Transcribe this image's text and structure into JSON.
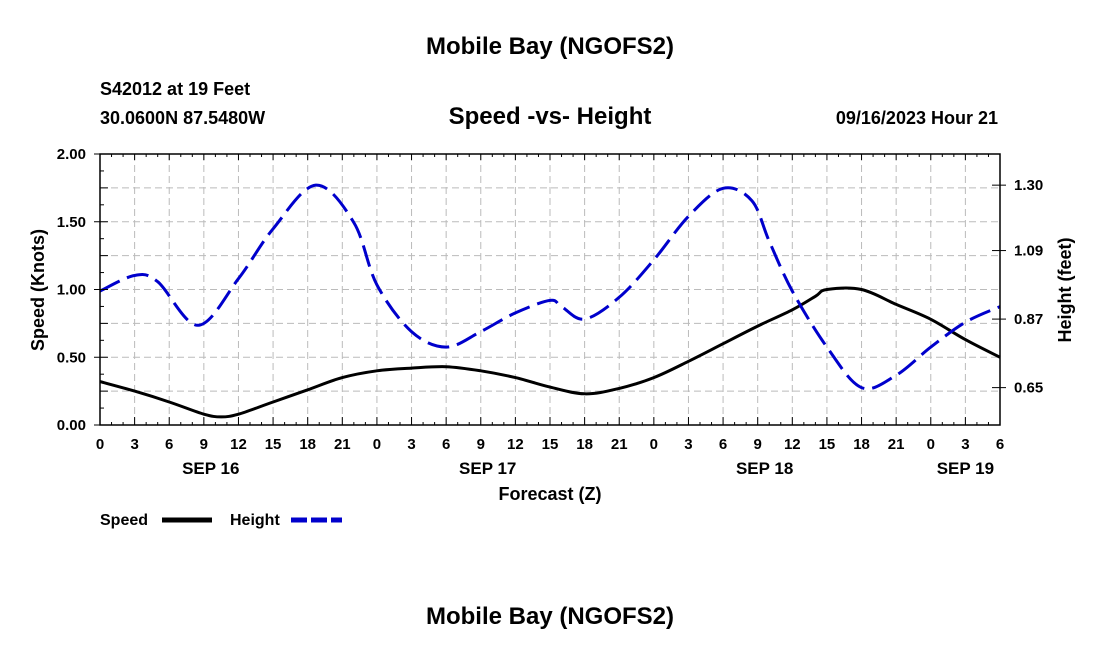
{
  "chart_data": {
    "type": "line",
    "title": "Mobile Bay (NGOFS2)",
    "subtitle": "Speed -vs- Height",
    "station_line1": "S42012 at 19 Feet",
    "station_line2": "30.0600N  87.5480W",
    "timestamp": "09/16/2023 Hour 21",
    "xlabel": "Forecast (Z)",
    "ylabel_left": "Speed (Knots)",
    "ylabel_right": "Height (feet)",
    "x_range_hours": [
      0,
      78
    ],
    "x_ticks_hours": [
      0,
      3,
      6,
      9,
      12,
      15,
      18,
      21,
      24,
      27,
      30,
      33,
      36,
      39,
      42,
      45,
      48,
      51,
      54,
      57,
      60,
      63,
      66,
      69,
      72,
      75,
      78
    ],
    "x_tick_labels": [
      "0",
      "3",
      "6",
      "9",
      "12",
      "15",
      "18",
      "21",
      "0",
      "3",
      "6",
      "9",
      "12",
      "15",
      "18",
      "21",
      "0",
      "3",
      "6",
      "9",
      "12",
      "15",
      "18",
      "21",
      "0",
      "3",
      "6"
    ],
    "date_labels": [
      {
        "hour": 9.6,
        "label": "SEP 16"
      },
      {
        "hour": 33.6,
        "label": "SEP 17"
      },
      {
        "hour": 57.6,
        "label": "SEP 18"
      },
      {
        "hour": 75.0,
        "label": "SEP 19"
      }
    ],
    "y_left_range": [
      0,
      2
    ],
    "y_left_ticks": [
      "0.00",
      "0.50",
      "1.00",
      "1.50",
      "2.00"
    ],
    "y_left_tick_values": [
      0,
      0.5,
      1.0,
      1.5,
      2.0
    ],
    "y_right_ticks": [
      "0.65",
      "0.87",
      "1.09",
      "1.30"
    ],
    "y_right_tick_values": [
      0.65,
      0.87,
      1.09,
      1.3
    ],
    "y_right_range": [
      0.53,
      1.4
    ],
    "grid": true,
    "legend_position": "bottom-left",
    "series": [
      {
        "name": "Speed",
        "axis": "left",
        "color": "#000000",
        "dash": "solid",
        "x": [
          0,
          3,
          6,
          9,
          10.5,
          12,
          15,
          18,
          21,
          24,
          27,
          30,
          33,
          36,
          39,
          42,
          45,
          48,
          51,
          54,
          57,
          60,
          62,
          63,
          66,
          69,
          72,
          75,
          78
        ],
        "y": [
          0.32,
          0.25,
          0.17,
          0.08,
          0.06,
          0.08,
          0.17,
          0.26,
          0.35,
          0.4,
          0.42,
          0.43,
          0.4,
          0.35,
          0.28,
          0.23,
          0.27,
          0.35,
          0.47,
          0.6,
          0.73,
          0.85,
          0.95,
          1.0,
          1.0,
          0.89,
          0.78,
          0.63,
          0.5
        ]
      },
      {
        "name": "Height",
        "axis": "right",
        "color": "#0000cc",
        "dash": "dashed",
        "x": [
          0,
          3,
          5,
          8.5,
          12,
          15,
          18.7,
          22,
          24,
          27,
          30,
          33,
          36,
          39,
          40,
          42,
          45,
          48,
          51,
          54,
          56.5,
          58,
          60,
          63,
          66,
          69,
          72,
          75,
          78
        ],
        "y": [
          0.96,
          1.01,
          0.99,
          0.85,
          1.0,
          1.16,
          1.3,
          1.18,
          0.98,
          0.83,
          0.78,
          0.83,
          0.89,
          0.93,
          0.91,
          0.87,
          0.94,
          1.06,
          1.2,
          1.29,
          1.25,
          1.12,
          0.96,
          0.78,
          0.65,
          0.69,
          0.78,
          0.86,
          0.91
        ]
      }
    ],
    "legend": [
      {
        "label": "Speed",
        "color": "#000000"
      },
      {
        "label": "Height",
        "color": "#0000cc"
      }
    ],
    "footer_title": "Mobile Bay (NGOFS2)"
  }
}
